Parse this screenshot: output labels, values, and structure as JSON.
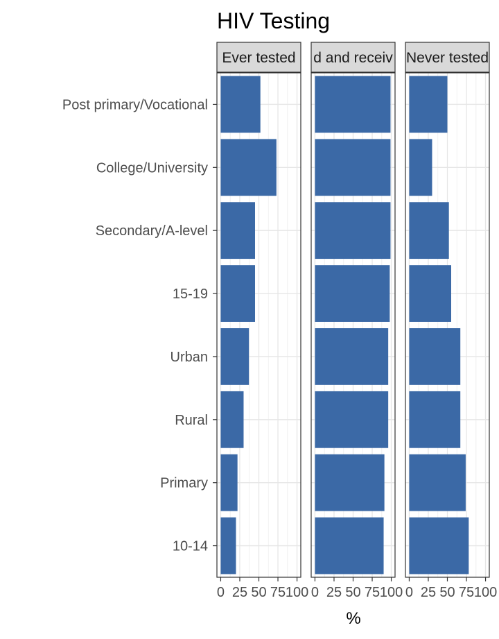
{
  "chart_data": {
    "type": "bar",
    "orientation": "horizontal",
    "title": "HIV Testing",
    "xlabel": "%",
    "ylabel": "",
    "xlim": [
      0,
      100
    ],
    "x_tick_labels": [
      "0",
      "25",
      "50",
      "75",
      "100"
    ],
    "grid": true,
    "legend": "none",
    "bar_color": "#3b69a6",
    "categories": [
      "10-14",
      "Primary",
      "Rural",
      "Urban",
      "15-19",
      "Secondary/A-level",
      "College/University",
      "Post primary/Vocational"
    ],
    "panels": [
      {
        "strip_label": "Ever tested",
        "values": [
          20,
          22,
          30,
          37,
          45,
          45,
          73,
          52
        ]
      },
      {
        "strip_label": "d and receiv",
        "values": [
          90,
          91,
          96,
          96,
          98,
          99,
          99,
          99
        ]
      },
      {
        "strip_label": "Never tested",
        "values": [
          78,
          74,
          67,
          67,
          55,
          52,
          30,
          50
        ]
      }
    ]
  }
}
